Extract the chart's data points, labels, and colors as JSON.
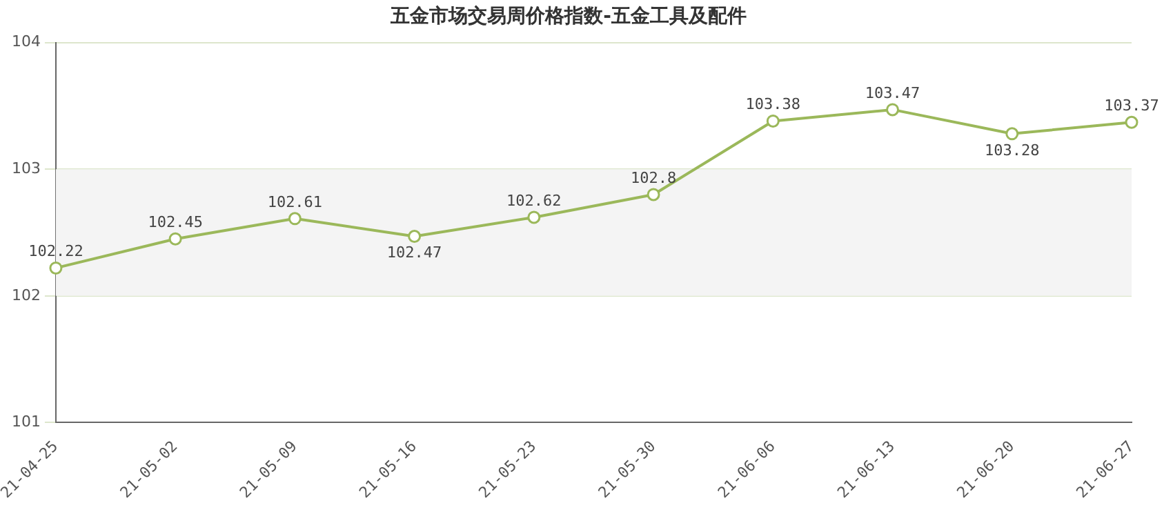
{
  "chart_data": {
    "type": "line",
    "title": "五金市场交易周价格指数-五金工具及配件",
    "categories": [
      "21-04-25",
      "21-05-02",
      "21-05-09",
      "21-05-16",
      "21-05-23",
      "21-05-30",
      "21-06-06",
      "21-06-13",
      "21-06-20",
      "21-06-27"
    ],
    "series": [
      {
        "color": "#9bb85a",
        "values": [
          102.22,
          102.45,
          102.61,
          102.47,
          102.62,
          102.8,
          103.38,
          103.47,
          103.28,
          103.37
        ]
      }
    ],
    "ylim": [
      101,
      104
    ],
    "yticks": [
      101,
      102,
      103,
      104
    ],
    "bands": [
      {
        "axis": "y",
        "from": 102,
        "to": 103,
        "color": "#f4f4f4"
      }
    ],
    "grid": "y",
    "marker": "circle",
    "line_style": "solid",
    "data_labels": true,
    "legend": false
  }
}
